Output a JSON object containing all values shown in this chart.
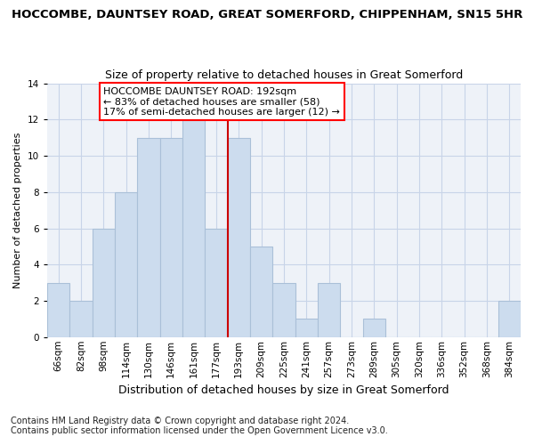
{
  "title": "HOCCOMBE, DAUNTSEY ROAD, GREAT SOMERFORD, CHIPPENHAM, SN15 5HR",
  "subtitle": "Size of property relative to detached houses in Great Somerford",
  "xlabel": "Distribution of detached houses by size in Great Somerford",
  "ylabel": "Number of detached properties",
  "bar_labels": [
    "66sqm",
    "82sqm",
    "98sqm",
    "114sqm",
    "130sqm",
    "146sqm",
    "161sqm",
    "177sqm",
    "193sqm",
    "209sqm",
    "225sqm",
    "241sqm",
    "257sqm",
    "273sqm",
    "289sqm",
    "305sqm",
    "320sqm",
    "336sqm",
    "352sqm",
    "368sqm",
    "384sqm"
  ],
  "bar_values": [
    3,
    2,
    6,
    8,
    11,
    11,
    12,
    6,
    11,
    5,
    3,
    1,
    3,
    0,
    1,
    0,
    0,
    0,
    0,
    0,
    2
  ],
  "bar_color": "#ccdcee",
  "bar_edge_color": "#aac0d8",
  "red_line_index": 8,
  "annotation_text": "HOCCOMBE DAUNTSEY ROAD: 192sqm\n← 83% of detached houses are smaller (58)\n17% of semi-detached houses are larger (12) →",
  "annotation_box_facecolor": "white",
  "annotation_box_edgecolor": "red",
  "red_line_color": "#cc0000",
  "ylim": [
    0,
    14
  ],
  "yticks": [
    0,
    2,
    4,
    6,
    8,
    10,
    12,
    14
  ],
  "grid_color": "#c8d4e8",
  "background_color": "#eef2f8",
  "footer_text": "Contains HM Land Registry data © Crown copyright and database right 2024.\nContains public sector information licensed under the Open Government Licence v3.0.",
  "title_fontsize": 9.5,
  "subtitle_fontsize": 9,
  "xlabel_fontsize": 9,
  "ylabel_fontsize": 8,
  "tick_fontsize": 7.5,
  "annotation_fontsize": 8,
  "footer_fontsize": 7
}
